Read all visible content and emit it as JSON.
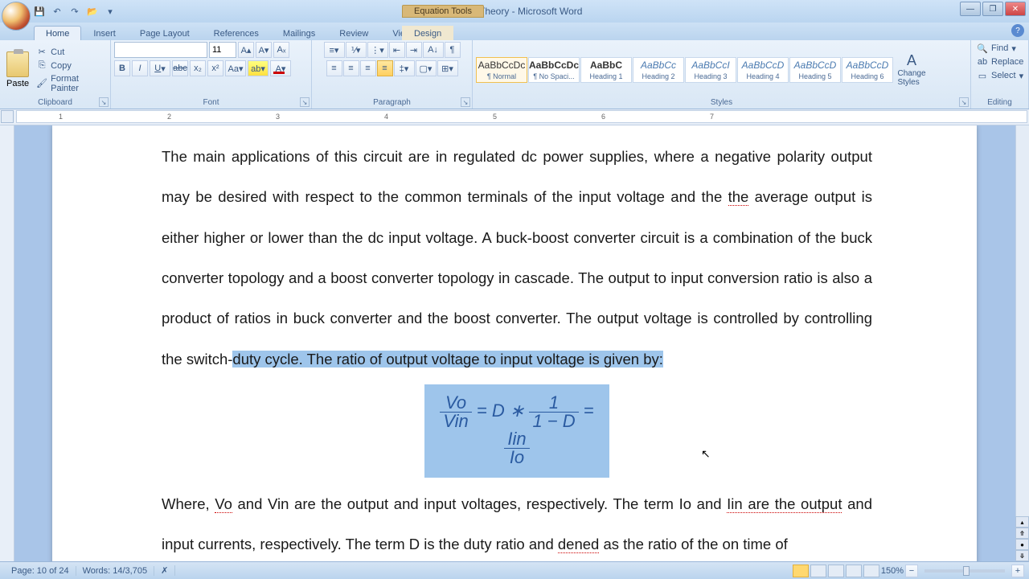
{
  "window": {
    "title": "Project Theory - Microsoft Word",
    "context_tab_group": "Equation Tools"
  },
  "tabs": {
    "items": [
      "Home",
      "Insert",
      "Page Layout",
      "References",
      "Mailings",
      "Review",
      "View"
    ],
    "context": "Design",
    "active": "Home"
  },
  "ribbon": {
    "clipboard": {
      "label": "Clipboard",
      "paste": "Paste",
      "cut": "Cut",
      "copy": "Copy",
      "format_painter": "Format Painter"
    },
    "font": {
      "label": "Font",
      "family": "",
      "size": "11"
    },
    "paragraph": {
      "label": "Paragraph"
    },
    "styles": {
      "label": "Styles",
      "change": "Change Styles",
      "items": [
        {
          "preview": "AaBbCcDc",
          "name": "¶ Normal"
        },
        {
          "preview": "AaBbCcDc",
          "name": "¶ No Spaci..."
        },
        {
          "preview": "AaBbC",
          "name": "Heading 1"
        },
        {
          "preview": "AaBbCc",
          "name": "Heading 2"
        },
        {
          "preview": "AaBbCcI",
          "name": "Heading 3"
        },
        {
          "preview": "AaBbCcD",
          "name": "Heading 4"
        },
        {
          "preview": "AaBbCcD",
          "name": "Heading 5"
        },
        {
          "preview": "AaBbCcD",
          "name": "Heading 6"
        }
      ]
    },
    "editing": {
      "label": "Editing",
      "find": "Find",
      "replace": "Replace",
      "select": "Select"
    }
  },
  "ruler": {
    "marks": [
      "1",
      "2",
      "3",
      "4",
      "5",
      "6",
      "7"
    ]
  },
  "document": {
    "para1_a": "The main applications of this circuit are in regulated dc power supplies, where a negative polarity output may be desired with respect to the common terminals of the input voltage and the ",
    "para1_the": "the",
    "para1_b": " average output is either higher or lower than the dc input voltage. A buck-boost converter circuit is a combination of the buck converter topology and a boost converter topology in cascade. The output to input conversion ratio is also a product of ratios in buck converter and the boost converter. The output voltage is controlled by controlling the switch-",
    "para1_sel": "duty cycle. The ratio of output voltage to input voltage is given by:",
    "eq": {
      "vo": "Vo",
      "vin": "Vin",
      "eq1": " = ",
      "D": "D",
      "star": " ∗ ",
      "one": "1",
      "oneMinusD": "1 − D",
      "eq2": " = ",
      "iin": "Iin",
      "io": "Io"
    },
    "para2_a": "Where, ",
    "para2_vo": "Vo",
    "para2_b": " and Vin are the output and input voltages, respectively. The term Io and ",
    "para2_iin": "Iin are the output",
    "para2_c": " and input currents, respectively. The term D is the duty ratio and ",
    "para2_dened": "dened",
    "para2_d": " as the ratio of the on time of"
  },
  "status": {
    "page": "Page: 10 of 24",
    "words": "Words: 14/3,705",
    "zoom": "150%"
  }
}
